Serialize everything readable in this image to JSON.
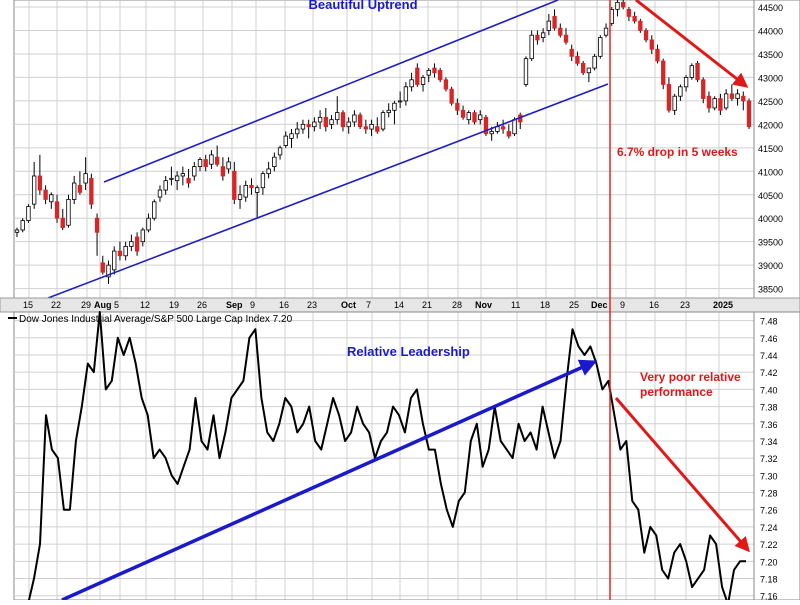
{
  "colors": {
    "up_candle": "#ffffff",
    "down_candle": "#d62728",
    "candle_wick": "#000000",
    "channel": "#1f1fbf",
    "annotation_red": "#e01818",
    "annotation_blue": "#1a1acc",
    "ratio_line": "#000000",
    "grid": "#d0d0d0",
    "panel_bg": "#ffffff",
    "axis_bg": "#e6e6e6"
  },
  "chart_data": [
    {
      "type": "candlestick",
      "title": "Beautiful Uptrend",
      "x_tick_labels": [
        "15",
        "22",
        "29",
        "Aug",
        "5",
        "12",
        "19",
        "26",
        "Sep",
        "9",
        "16",
        "23",
        "Oct",
        "7",
        "14",
        "21",
        "28",
        "Nov",
        "11",
        "18",
        "25",
        "Dec",
        "9",
        "16",
        "23",
        "2025"
      ],
      "y_tick_labels": [
        "38500",
        "39000",
        "39500",
        "40000",
        "40500",
        "41000",
        "41500",
        "42000",
        "42500",
        "43000",
        "43500",
        "44000",
        "44500"
      ],
      "ylim": [
        38300,
        44650
      ],
      "grid": true,
      "candles": [
        {
          "o": 39700,
          "h": 39800,
          "l": 39600,
          "c": 39750
        },
        {
          "o": 39750,
          "h": 40000,
          "l": 39700,
          "c": 39950
        },
        {
          "o": 39950,
          "h": 40300,
          "l": 39900,
          "c": 40250
        },
        {
          "o": 40300,
          "h": 41200,
          "l": 40200,
          "c": 40900
        },
        {
          "o": 40900,
          "h": 41350,
          "l": 40500,
          "c": 40600
        },
        {
          "o": 40600,
          "h": 40700,
          "l": 40300,
          "c": 40400
        },
        {
          "o": 40350,
          "h": 40550,
          "l": 40200,
          "c": 40500
        },
        {
          "o": 40350,
          "h": 40500,
          "l": 39900,
          "c": 40000
        },
        {
          "o": 40000,
          "h": 40200,
          "l": 39750,
          "c": 39800
        },
        {
          "o": 39850,
          "h": 40500,
          "l": 39800,
          "c": 40400
        },
        {
          "o": 40400,
          "h": 40900,
          "l": 40300,
          "c": 40750
        },
        {
          "o": 40700,
          "h": 41000,
          "l": 40500,
          "c": 40550
        },
        {
          "o": 40750,
          "h": 41300,
          "l": 40600,
          "c": 40950
        },
        {
          "o": 40850,
          "h": 40950,
          "l": 40200,
          "c": 40300
        },
        {
          "o": 40000,
          "h": 40100,
          "l": 39200,
          "c": 39700
        },
        {
          "o": 39050,
          "h": 39200,
          "l": 38800,
          "c": 38850
        },
        {
          "o": 38750,
          "h": 39100,
          "l": 38600,
          "c": 39000
        },
        {
          "o": 38900,
          "h": 39400,
          "l": 38800,
          "c": 39300
        },
        {
          "o": 39300,
          "h": 39500,
          "l": 39100,
          "c": 39200
        },
        {
          "o": 39200,
          "h": 39500,
          "l": 39100,
          "c": 39400
        },
        {
          "o": 39400,
          "h": 39650,
          "l": 39300,
          "c": 39500
        },
        {
          "o": 39600,
          "h": 39700,
          "l": 39200,
          "c": 39300
        },
        {
          "o": 39500,
          "h": 39800,
          "l": 39400,
          "c": 39750
        },
        {
          "o": 39750,
          "h": 40100,
          "l": 39700,
          "c": 40000
        },
        {
          "o": 40000,
          "h": 40400,
          "l": 39950,
          "c": 40350
        },
        {
          "o": 40450,
          "h": 40700,
          "l": 40350,
          "c": 40600
        },
        {
          "o": 40600,
          "h": 40900,
          "l": 40500,
          "c": 40800
        },
        {
          "o": 40850,
          "h": 41100,
          "l": 40700,
          "c": 40850
        },
        {
          "o": 40800,
          "h": 41000,
          "l": 40600,
          "c": 40900
        },
        {
          "o": 40900,
          "h": 41100,
          "l": 40700,
          "c": 40950
        },
        {
          "o": 40850,
          "h": 41050,
          "l": 40650,
          "c": 40750
        },
        {
          "o": 40900,
          "h": 41200,
          "l": 40800,
          "c": 41100
        },
        {
          "o": 41100,
          "h": 41300,
          "l": 41000,
          "c": 41250
        },
        {
          "o": 41250,
          "h": 41350,
          "l": 41000,
          "c": 41100
        },
        {
          "o": 41150,
          "h": 41450,
          "l": 41050,
          "c": 41350
        },
        {
          "o": 41300,
          "h": 41550,
          "l": 41100,
          "c": 41150
        },
        {
          "o": 41100,
          "h": 41300,
          "l": 40800,
          "c": 40900
        },
        {
          "o": 41050,
          "h": 41300,
          "l": 40950,
          "c": 41200
        },
        {
          "o": 41000,
          "h": 41200,
          "l": 40300,
          "c": 40400
        },
        {
          "o": 40400,
          "h": 40700,
          "l": 40200,
          "c": 40500
        },
        {
          "o": 40450,
          "h": 40800,
          "l": 40350,
          "c": 40700
        },
        {
          "o": 40700,
          "h": 40850,
          "l": 40500,
          "c": 40650
        },
        {
          "o": 40550,
          "h": 40700,
          "l": 40000,
          "c": 40650
        },
        {
          "o": 40650,
          "h": 41000,
          "l": 40500,
          "c": 40950
        },
        {
          "o": 40950,
          "h": 41200,
          "l": 40850,
          "c": 41050
        },
        {
          "o": 41100,
          "h": 41400,
          "l": 41000,
          "c": 41300
        },
        {
          "o": 41350,
          "h": 41550,
          "l": 41250,
          "c": 41500
        },
        {
          "o": 41550,
          "h": 41850,
          "l": 41500,
          "c": 41750
        },
        {
          "o": 41700,
          "h": 41900,
          "l": 41500,
          "c": 41800
        },
        {
          "o": 41800,
          "h": 42050,
          "l": 41700,
          "c": 41900
        },
        {
          "o": 41900,
          "h": 42100,
          "l": 41800,
          "c": 42000
        },
        {
          "o": 42000,
          "h": 42100,
          "l": 41700,
          "c": 41950
        },
        {
          "o": 41950,
          "h": 42150,
          "l": 41850,
          "c": 42050
        },
        {
          "o": 42050,
          "h": 42300,
          "l": 41900,
          "c": 42150
        },
        {
          "o": 42150,
          "h": 42350,
          "l": 41850,
          "c": 41950
        },
        {
          "o": 42000,
          "h": 42200,
          "l": 41900,
          "c": 42100
        },
        {
          "o": 42100,
          "h": 42600,
          "l": 42000,
          "c": 42250
        },
        {
          "o": 42250,
          "h": 42300,
          "l": 41850,
          "c": 41950
        },
        {
          "o": 41950,
          "h": 42150,
          "l": 41800,
          "c": 42050
        },
        {
          "o": 42050,
          "h": 42300,
          "l": 41950,
          "c": 42200
        },
        {
          "o": 42200,
          "h": 42250,
          "l": 41900,
          "c": 41950
        },
        {
          "o": 41950,
          "h": 42100,
          "l": 41800,
          "c": 41900
        },
        {
          "o": 41900,
          "h": 42100,
          "l": 41750,
          "c": 42000
        },
        {
          "o": 41950,
          "h": 42150,
          "l": 41800,
          "c": 41850
        },
        {
          "o": 41900,
          "h": 42300,
          "l": 41850,
          "c": 42250
        },
        {
          "o": 42250,
          "h": 42450,
          "l": 42150,
          "c": 42300
        },
        {
          "o": 42300,
          "h": 42500,
          "l": 42000,
          "c": 42450
        },
        {
          "o": 42500,
          "h": 42700,
          "l": 42350,
          "c": 42500
        },
        {
          "o": 42500,
          "h": 42900,
          "l": 42400,
          "c": 42800
        },
        {
          "o": 42800,
          "h": 43100,
          "l": 42700,
          "c": 42950
        },
        {
          "o": 43200,
          "h": 43300,
          "l": 42800,
          "c": 42850
        },
        {
          "o": 42850,
          "h": 43050,
          "l": 42700,
          "c": 43000
        },
        {
          "o": 43050,
          "h": 43200,
          "l": 42900,
          "c": 43150
        },
        {
          "o": 43200,
          "h": 43300,
          "l": 43000,
          "c": 43100
        },
        {
          "o": 43150,
          "h": 43200,
          "l": 42900,
          "c": 42950
        },
        {
          "o": 42950,
          "h": 43000,
          "l": 42700,
          "c": 42750
        },
        {
          "o": 42750,
          "h": 42800,
          "l": 42400,
          "c": 42450
        },
        {
          "o": 42450,
          "h": 42550,
          "l": 42200,
          "c": 42300
        },
        {
          "o": 42300,
          "h": 42400,
          "l": 42100,
          "c": 42150
        },
        {
          "o": 42100,
          "h": 42300,
          "l": 42000,
          "c": 42250
        },
        {
          "o": 42250,
          "h": 42300,
          "l": 42000,
          "c": 42050
        },
        {
          "o": 42100,
          "h": 42300,
          "l": 42000,
          "c": 42200
        },
        {
          "o": 42150,
          "h": 42200,
          "l": 41750,
          "c": 41800
        },
        {
          "o": 41800,
          "h": 41950,
          "l": 41650,
          "c": 41850
        },
        {
          "o": 41850,
          "h": 42050,
          "l": 41800,
          "c": 41950
        },
        {
          "o": 41950,
          "h": 42100,
          "l": 41800,
          "c": 41900
        },
        {
          "o": 41850,
          "h": 42000,
          "l": 41700,
          "c": 41750
        },
        {
          "o": 41800,
          "h": 42150,
          "l": 41750,
          "c": 42100
        },
        {
          "o": 42200,
          "h": 42250,
          "l": 41900,
          "c": 42050
        },
        {
          "o": 42850,
          "h": 43450,
          "l": 42800,
          "c": 43400
        },
        {
          "o": 43400,
          "h": 44000,
          "l": 43350,
          "c": 43900
        },
        {
          "o": 43900,
          "h": 44000,
          "l": 43700,
          "c": 43800
        },
        {
          "o": 43850,
          "h": 44050,
          "l": 43750,
          "c": 43950
        },
        {
          "o": 44000,
          "h": 44350,
          "l": 43900,
          "c": 44200
        },
        {
          "o": 44300,
          "h": 44450,
          "l": 44000,
          "c": 44050
        },
        {
          "o": 44050,
          "h": 44150,
          "l": 43850,
          "c": 43900
        },
        {
          "o": 43900,
          "h": 44050,
          "l": 43700,
          "c": 43750
        },
        {
          "o": 43600,
          "h": 43700,
          "l": 43350,
          "c": 43450
        },
        {
          "o": 43450,
          "h": 43550,
          "l": 43250,
          "c": 43300
        },
        {
          "o": 43300,
          "h": 43350,
          "l": 43050,
          "c": 43100
        },
        {
          "o": 43100,
          "h": 43200,
          "l": 42900,
          "c": 43200
        },
        {
          "o": 43200,
          "h": 43500,
          "l": 43150,
          "c": 43450
        },
        {
          "o": 43450,
          "h": 43900,
          "l": 43400,
          "c": 43850
        },
        {
          "o": 43900,
          "h": 44150,
          "l": 43850,
          "c": 44050
        },
        {
          "o": 44150,
          "h": 44500,
          "l": 44100,
          "c": 44450
        },
        {
          "o": 44450,
          "h": 44650,
          "l": 44300,
          "c": 44600
        },
        {
          "o": 44600,
          "h": 44650,
          "l": 44450,
          "c": 44500
        },
        {
          "o": 44450,
          "h": 44500,
          "l": 44200,
          "c": 44300
        },
        {
          "o": 44300,
          "h": 44400,
          "l": 44150,
          "c": 44200
        },
        {
          "o": 44200,
          "h": 44250,
          "l": 43950,
          "c": 44000
        },
        {
          "o": 44000,
          "h": 44050,
          "l": 43750,
          "c": 43800
        },
        {
          "o": 43800,
          "h": 43900,
          "l": 43500,
          "c": 43600
        },
        {
          "o": 43600,
          "h": 43700,
          "l": 43300,
          "c": 43350
        },
        {
          "o": 43350,
          "h": 43400,
          "l": 42750,
          "c": 42850
        },
        {
          "o": 42850,
          "h": 43000,
          "l": 42250,
          "c": 42300
        },
        {
          "o": 42300,
          "h": 42650,
          "l": 42200,
          "c": 42600
        },
        {
          "o": 42600,
          "h": 42850,
          "l": 42500,
          "c": 42800
        },
        {
          "o": 42800,
          "h": 43050,
          "l": 42700,
          "c": 43000
        },
        {
          "o": 43000,
          "h": 43300,
          "l": 42950,
          "c": 43250
        },
        {
          "o": 43300,
          "h": 43350,
          "l": 42900,
          "c": 42950
        },
        {
          "o": 42950,
          "h": 43000,
          "l": 42450,
          "c": 42550
        },
        {
          "o": 42600,
          "h": 42700,
          "l": 42250,
          "c": 42350
        },
        {
          "o": 42350,
          "h": 42600,
          "l": 42300,
          "c": 42550
        },
        {
          "o": 42550,
          "h": 42650,
          "l": 42200,
          "c": 42300
        },
        {
          "o": 42350,
          "h": 42750,
          "l": 42300,
          "c": 42650
        },
        {
          "o": 42650,
          "h": 42850,
          "l": 42500,
          "c": 42550
        },
        {
          "o": 42550,
          "h": 42750,
          "l": 42400,
          "c": 42650
        },
        {
          "o": 42600,
          "h": 42700,
          "l": 42300,
          "c": 42500
        },
        {
          "o": 42500,
          "h": 42550,
          "l": 41900,
          "c": 41950
        }
      ],
      "annotations": {
        "title": "Beautiful Uptrend",
        "drop": "6.7% drop in 5 weeks"
      }
    },
    {
      "type": "line",
      "legend": "Dow Jones Industrial Average/S&P 500 Large Cap Index 7.20",
      "y_tick_labels": [
        "7.48",
        "7.46",
        "7.44",
        "7.42",
        "7.40",
        "7.38",
        "7.36",
        "7.34",
        "7.32",
        "7.30",
        "7.28",
        "7.26",
        "7.24",
        "7.22",
        "7.20",
        "7.18",
        "7.16"
      ],
      "ylim": [
        7.155,
        7.49
      ],
      "grid": true,
      "series": [
        {
          "values": [
            7.15,
            7.18,
            7.22,
            7.37,
            7.33,
            7.32,
            7.26,
            7.26,
            7.34,
            7.38,
            7.43,
            7.42,
            7.49,
            7.4,
            7.41,
            7.46,
            7.44,
            7.46,
            7.43,
            7.39,
            7.37,
            7.32,
            7.33,
            7.32,
            7.3,
            7.29,
            7.31,
            7.33,
            7.39,
            7.34,
            7.33,
            7.37,
            7.32,
            7.35,
            7.39,
            7.4,
            7.41,
            7.46,
            7.47,
            7.39,
            7.35,
            7.34,
            7.36,
            7.39,
            7.38,
            7.35,
            7.36,
            7.38,
            7.34,
            7.33,
            7.36,
            7.39,
            7.37,
            7.34,
            7.35,
            7.38,
            7.36,
            7.35,
            7.32,
            7.34,
            7.35,
            7.38,
            7.37,
            7.35,
            7.39,
            7.4,
            7.36,
            7.33,
            7.33,
            7.29,
            7.26,
            7.24,
            7.27,
            7.28,
            7.34,
            7.36,
            7.31,
            7.33,
            7.38,
            7.34,
            7.33,
            7.32,
            7.36,
            7.34,
            7.35,
            7.33,
            7.38,
            7.35,
            7.32,
            7.34,
            7.41,
            7.47,
            7.45,
            7.44,
            7.45,
            7.43,
            7.4,
            7.41,
            7.37,
            7.33,
            7.34,
            7.27,
            7.26,
            7.21,
            7.24,
            7.23,
            7.19,
            7.18,
            7.21,
            7.22,
            7.2,
            7.17,
            7.18,
            7.19,
            7.23,
            7.22,
            7.17,
            7.15,
            7.19,
            7.2,
            7.2
          ]
        }
      ],
      "annotations": {
        "leadership": "Relative Leadership",
        "poor_line1": "Very poor relative",
        "poor_line2": "performance"
      }
    }
  ]
}
